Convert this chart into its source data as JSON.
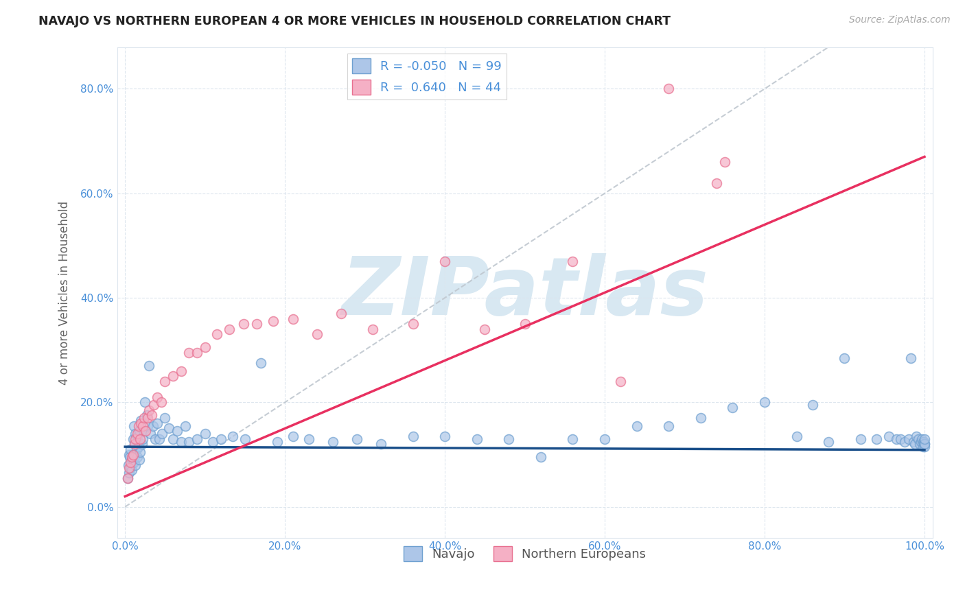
{
  "title": "NAVAJO VS NORTHERN EUROPEAN 4 OR MORE VEHICLES IN HOUSEHOLD CORRELATION CHART",
  "source": "Source: ZipAtlas.com",
  "ylabel": "4 or more Vehicles in Household",
  "xlim": [
    -0.01,
    1.01
  ],
  "ylim": [
    -0.06,
    0.88
  ],
  "xticks": [
    0.0,
    0.2,
    0.4,
    0.6,
    0.8,
    1.0
  ],
  "xticklabels": [
    "0.0%",
    "20.0%",
    "40.0%",
    "60.0%",
    "80.0%",
    "100.0%"
  ],
  "yticks": [
    0.0,
    0.2,
    0.4,
    0.6,
    0.8
  ],
  "yticklabels": [
    "0.0%",
    "20.0%",
    "40.0%",
    "60.0%",
    "80.0%"
  ],
  "navajo_R": -0.05,
  "navajo_N": 99,
  "northern_R": 0.64,
  "northern_N": 44,
  "navajo_color": "#adc6e8",
  "northern_color": "#f5b0c5",
  "navajo_edge_color": "#6fa0d0",
  "northern_edge_color": "#e87090",
  "navajo_line_color": "#1a4f8a",
  "northern_line_color": "#e83060",
  "grid_color": "#dde6ee",
  "tick_color": "#4a90d9",
  "navajo_line_intercept": 0.115,
  "navajo_line_slope": -0.006,
  "northern_line_intercept": 0.02,
  "northern_line_slope": 0.65,
  "navajo_x": [
    0.003,
    0.004,
    0.005,
    0.005,
    0.006,
    0.007,
    0.007,
    0.008,
    0.008,
    0.009,
    0.01,
    0.01,
    0.011,
    0.011,
    0.012,
    0.012,
    0.013,
    0.013,
    0.014,
    0.015,
    0.015,
    0.016,
    0.017,
    0.018,
    0.018,
    0.019,
    0.02,
    0.021,
    0.022,
    0.023,
    0.025,
    0.027,
    0.028,
    0.03,
    0.032,
    0.035,
    0.038,
    0.04,
    0.043,
    0.046,
    0.05,
    0.055,
    0.06,
    0.065,
    0.07,
    0.075,
    0.08,
    0.09,
    0.1,
    0.11,
    0.12,
    0.135,
    0.15,
    0.17,
    0.19,
    0.21,
    0.23,
    0.26,
    0.29,
    0.32,
    0.36,
    0.4,
    0.44,
    0.48,
    0.52,
    0.56,
    0.6,
    0.64,
    0.68,
    0.72,
    0.76,
    0.8,
    0.84,
    0.86,
    0.88,
    0.9,
    0.92,
    0.94,
    0.955,
    0.965,
    0.97,
    0.975,
    0.98,
    0.983,
    0.986,
    0.988,
    0.99,
    0.992,
    0.994,
    0.996,
    0.997,
    0.998,
    0.998,
    0.999,
    0.999,
    1.0,
    1.0,
    1.0,
    1.0
  ],
  "navajo_y": [
    0.055,
    0.08,
    0.1,
    0.065,
    0.095,
    0.11,
    0.075,
    0.09,
    0.07,
    0.085,
    0.13,
    0.1,
    0.155,
    0.085,
    0.095,
    0.12,
    0.14,
    0.08,
    0.11,
    0.135,
    0.095,
    0.125,
    0.115,
    0.145,
    0.09,
    0.105,
    0.165,
    0.12,
    0.13,
    0.145,
    0.2,
    0.175,
    0.155,
    0.27,
    0.14,
    0.155,
    0.13,
    0.16,
    0.13,
    0.14,
    0.17,
    0.15,
    0.13,
    0.145,
    0.125,
    0.155,
    0.125,
    0.13,
    0.14,
    0.125,
    0.13,
    0.135,
    0.13,
    0.275,
    0.125,
    0.135,
    0.13,
    0.125,
    0.13,
    0.12,
    0.135,
    0.135,
    0.13,
    0.13,
    0.095,
    0.13,
    0.13,
    0.155,
    0.155,
    0.17,
    0.19,
    0.2,
    0.135,
    0.195,
    0.125,
    0.285,
    0.13,
    0.13,
    0.135,
    0.13,
    0.13,
    0.125,
    0.13,
    0.285,
    0.125,
    0.12,
    0.135,
    0.13,
    0.12,
    0.125,
    0.13,
    0.115,
    0.125,
    0.125,
    0.12,
    0.12,
    0.115,
    0.12,
    0.13
  ],
  "northern_x": [
    0.003,
    0.005,
    0.007,
    0.008,
    0.01,
    0.012,
    0.013,
    0.015,
    0.017,
    0.019,
    0.02,
    0.022,
    0.024,
    0.026,
    0.028,
    0.03,
    0.033,
    0.036,
    0.04,
    0.045,
    0.05,
    0.06,
    0.07,
    0.08,
    0.09,
    0.1,
    0.115,
    0.13,
    0.148,
    0.165,
    0.185,
    0.21,
    0.24,
    0.27,
    0.31,
    0.36,
    0.4,
    0.45,
    0.5,
    0.56,
    0.62,
    0.68,
    0.74,
    0.75
  ],
  "northern_y": [
    0.055,
    0.075,
    0.085,
    0.095,
    0.1,
    0.12,
    0.13,
    0.14,
    0.155,
    0.13,
    0.16,
    0.155,
    0.17,
    0.145,
    0.17,
    0.185,
    0.175,
    0.195,
    0.21,
    0.2,
    0.24,
    0.25,
    0.26,
    0.295,
    0.295,
    0.305,
    0.33,
    0.34,
    0.35,
    0.35,
    0.355,
    0.36,
    0.33,
    0.37,
    0.34,
    0.35,
    0.47,
    0.34,
    0.35,
    0.47,
    0.24,
    0.8,
    0.62,
    0.66
  ]
}
